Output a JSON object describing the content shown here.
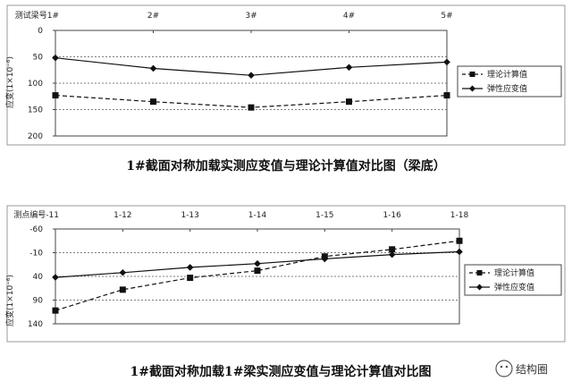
{
  "chart_data": [
    {
      "type": "line",
      "x_axis_position": "top",
      "y_axis": "inverted",
      "categories": [
        "测试梁号1#",
        "2#",
        "3#",
        "4#",
        "5#"
      ],
      "ylabel": "应变(1×10⁻⁶)",
      "ylim": [
        0,
        200
      ],
      "yticks": [
        "0",
        "50",
        "100",
        "150",
        "200"
      ],
      "grid": "horizontal dashed",
      "legend_position": "right",
      "series": [
        {
          "name": "理论计算值",
          "style": "dashed",
          "marker": "square",
          "values": [
            123,
            135,
            146,
            135,
            123
          ]
        },
        {
          "name": "弹性应变值",
          "style": "solid",
          "marker": "diamond",
          "values": [
            52,
            72,
            85,
            70,
            60
          ]
        }
      ],
      "caption": "1#截面对称加载实测应变值与理论计算值对比图（梁底）"
    },
    {
      "type": "line",
      "x_axis_position": "top",
      "y_axis": "inverted",
      "categories": [
        "测点编号-11",
        "1-12",
        "1-13",
        "1-14",
        "1-15",
        "1-16",
        "1-18"
      ],
      "ylabel": "应变(1×10⁻⁶)",
      "ylim": [
        -60,
        140
      ],
      "yticks": [
        "-60",
        "-10",
        "40",
        "90",
        "140"
      ],
      "grid": "horizontal dashed",
      "legend_position": "right",
      "series": [
        {
          "name": "理论计算值",
          "style": "dashed",
          "marker": "square",
          "values": [
            112,
            68,
            43,
            28,
            -2,
            -17,
            -35
          ]
        },
        {
          "name": "弹性应变值",
          "style": "solid",
          "marker": "diamond",
          "values": [
            42,
            32,
            21,
            13,
            3,
            -6,
            -12
          ]
        }
      ],
      "caption": "1#截面对称加载1#梁实测应变值与理论计算值对比图"
    }
  ],
  "watermark": "结构圈"
}
